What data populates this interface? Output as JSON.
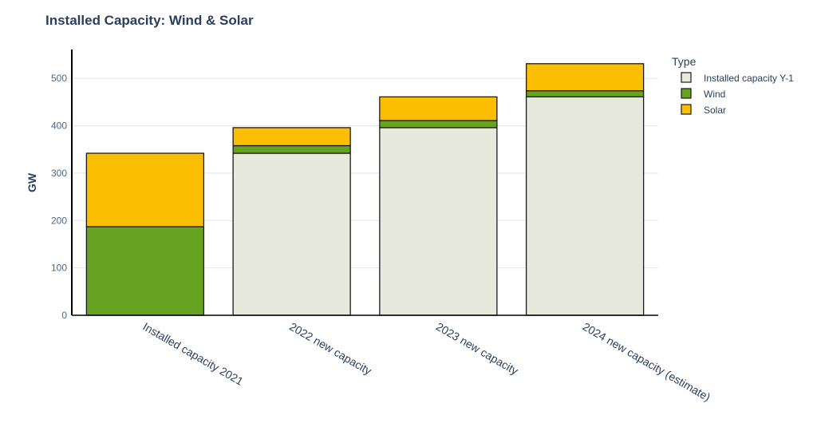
{
  "chart_data": {
    "type": "bar",
    "barmode": "stack",
    "title": "Installed Capacity: Wind & Solar",
    "xlabel": "",
    "ylabel": "GW",
    "ylim": [
      0,
      561
    ],
    "yticks": [
      0,
      100,
      200,
      300,
      400,
      500
    ],
    "grid": true,
    "categories": [
      "Installed capacity 2021",
      "2022 new capacity",
      "2023 new capacity",
      "2024 new capacity (estimate)"
    ],
    "legend": {
      "title": "Type",
      "placement": "right"
    },
    "series": [
      {
        "name": "Installed capacity Y-1",
        "color": "#e7e9dc",
        "values": [
          0,
          342,
          396,
          461
        ]
      },
      {
        "name": "Wind",
        "color": "#65a321",
        "values": [
          187,
          16,
          15,
          13
        ]
      },
      {
        "name": "Solar",
        "color": "#fcbe00",
        "values": [
          155,
          38,
          50,
          57
        ]
      }
    ]
  }
}
